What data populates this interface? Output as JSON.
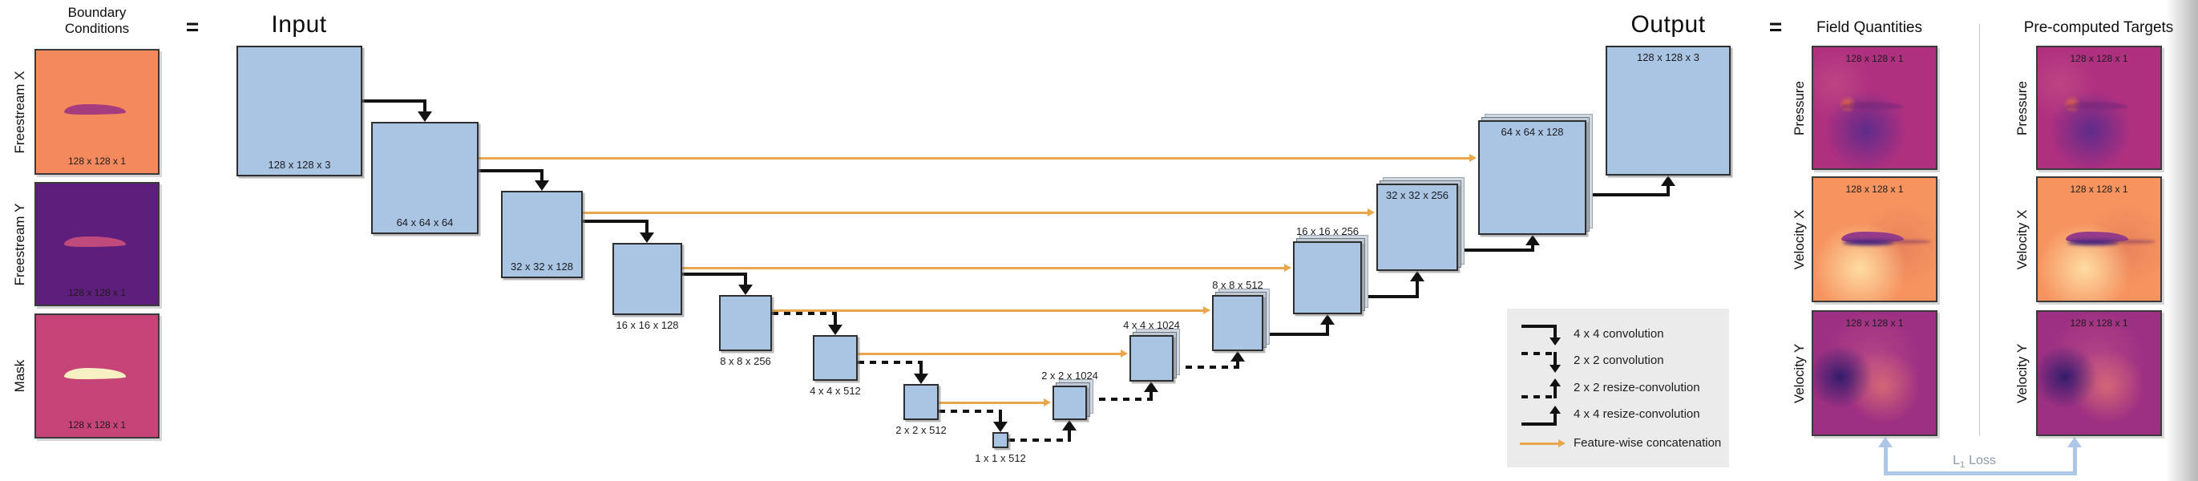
{
  "headers": {
    "boundary_conditions": [
      "Boundary",
      "Conditions"
    ],
    "equals_left": "=",
    "input": "Input",
    "output": "Output",
    "equals_right": "=",
    "field_quantities": "Field Quantities",
    "precomputed_targets": "Pre-computed Targets"
  },
  "boundary_conditions": {
    "panels": [
      {
        "label": "Freestream X",
        "dims": "128 x 128 x 1",
        "type": "freestream-x"
      },
      {
        "label": "Freestream Y",
        "dims": "128 x 128 x 1",
        "type": "freestream-y"
      },
      {
        "label": "Mask",
        "dims": "128 x 128 x 1",
        "type": "mask"
      }
    ]
  },
  "unet": {
    "boxes": [
      {
        "id": "input",
        "label": "128 x 128 x 3"
      },
      {
        "id": "enc-64",
        "label": "64 x 64 x 64"
      },
      {
        "id": "enc-32",
        "label": "32 x 32 x 128"
      },
      {
        "id": "enc-16",
        "label": "16 x 16 x 128"
      },
      {
        "id": "enc-8",
        "label": "8 x 8 x 256"
      },
      {
        "id": "enc-4",
        "label": "4 x 4 x 512"
      },
      {
        "id": "enc-2",
        "label": "2 x 2 x 512"
      },
      {
        "id": "enc-1",
        "label": "1 x 1 x 512"
      },
      {
        "id": "dec-2",
        "label": "2 x 2 x 1024"
      },
      {
        "id": "dec-4",
        "label": "4 x 4 x 1024"
      },
      {
        "id": "dec-8",
        "label": "8 x 8 x 512"
      },
      {
        "id": "dec-16",
        "label": "16 x 16 x 256"
      },
      {
        "id": "dec-32",
        "label": "32 x 32 x 256"
      },
      {
        "id": "dec-64",
        "label": "64 x 64 x 128"
      },
      {
        "id": "output",
        "label": "128 x 128 x 3"
      }
    ]
  },
  "legend": {
    "items": [
      {
        "label": "4 x 4 convolution",
        "symbol": "solid-down-arrow"
      },
      {
        "label": "2 x 2 convolution",
        "symbol": "dashed-down-arrow"
      },
      {
        "label": "2 x 2 resize-convolution",
        "symbol": "dashed-up-arrow"
      },
      {
        "label": "4 x 4 resize-convolution",
        "symbol": "solid-up-arrow"
      },
      {
        "label": "Feature-wise concatenation",
        "symbol": "orange-right-arrow"
      }
    ]
  },
  "outputs": {
    "field_quantities": {
      "panels": [
        {
          "label": "Pressure",
          "dims": "128 x 128 x 1",
          "type": "pressure"
        },
        {
          "label": "Velocity X",
          "dims": "128 x 128 x 1",
          "type": "velocity-x"
        },
        {
          "label": "Velocity Y",
          "dims": "128 x 128 x 1",
          "type": "velocity-y"
        }
      ]
    },
    "precomputed_targets": {
      "panels": [
        {
          "label": "Pressure",
          "dims": "128 x 128 x 1",
          "type": "pressure"
        },
        {
          "label": "Velocity X",
          "dims": "128 x 128 x 1",
          "type": "velocity-x"
        },
        {
          "label": "Velocity Y",
          "dims": "128 x 128 x 1",
          "type": "velocity-y"
        }
      ]
    }
  },
  "loss": {
    "prefix": "L",
    "subscript": "1",
    "suffix": "Loss"
  },
  "colors": {
    "box_fill": "#AAC4E4",
    "stack_fill": "#BFC9D6",
    "stack_border": "#6E7988",
    "stack_fill_outer": "#D2D8E0",
    "stack_border_outer": "#9AA3B0",
    "arrow_black": "#121212",
    "concat_orange": "#E9A64A",
    "legend_bg": "#EBEBEB",
    "loss_blue": "#AEC7E8",
    "loss_text": "#8B99A8"
  }
}
